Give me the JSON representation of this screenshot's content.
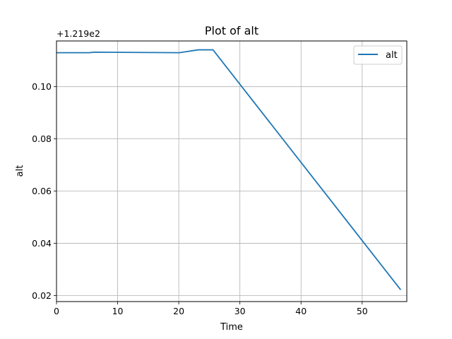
{
  "chart_data": {
    "type": "line",
    "title": "Plot of alt",
    "xlabel": "Time",
    "ylabel": "alt",
    "offset_label": "+1.219e2",
    "xlim": [
      0,
      57.3
    ],
    "ylim": [
      0.0177,
      0.1175
    ],
    "x_ticks": [
      0,
      10,
      20,
      30,
      40,
      50
    ],
    "x_tick_labels": [
      "0",
      "10",
      "20",
      "30",
      "40",
      "50"
    ],
    "y_ticks": [
      0.02,
      0.04,
      0.06,
      0.08,
      0.1
    ],
    "y_tick_labels": [
      "0.02",
      "0.04",
      "0.06",
      "0.08",
      "0.10"
    ],
    "grid": true,
    "legend_position": "top-right",
    "series": [
      {
        "name": "alt",
        "color": "#1f77b4",
        "x": [
          0,
          5.3,
          6.2,
          20.1,
          23.2,
          25.6,
          56.3
        ],
        "y": [
          0.113,
          0.113,
          0.1132,
          0.113,
          0.1141,
          0.1141,
          0.0222
        ]
      }
    ]
  }
}
